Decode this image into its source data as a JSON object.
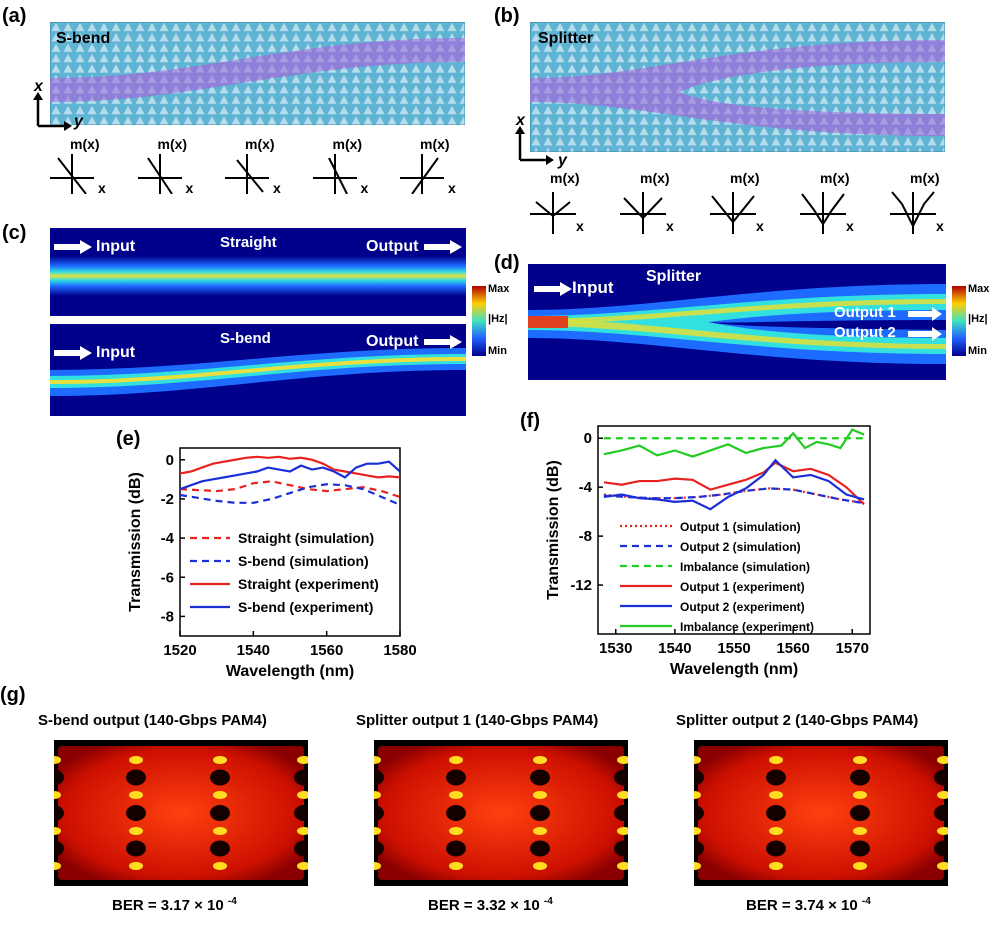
{
  "panels": {
    "a": {
      "label": "(a)",
      "title": "S-bend",
      "axis_x": "x",
      "axis_y": "y",
      "mode_label": "m(x)",
      "mode_axis": "x"
    },
    "b": {
      "label": "(b)",
      "title": "Splitter",
      "axis_x": "x",
      "axis_y": "y",
      "mode_label": "m(x)",
      "mode_axis": "x"
    },
    "c": {
      "label": "(c)",
      "top_title": "Straight",
      "bottom_title": "S-bend",
      "input": "Input",
      "output": "Output",
      "scale_max": "Max",
      "scale_min": "Min",
      "scale_label": "|Hz|"
    },
    "d": {
      "label": "(d)",
      "title": "Splitter",
      "input": "Input",
      "output1": "Output 1",
      "output2": "Output 2",
      "scale_max": "Max",
      "scale_min": "Min",
      "scale_label": "|Hz|"
    },
    "e": {
      "label": "(e)"
    },
    "f": {
      "label": "(f)"
    },
    "g": {
      "label": "(g)"
    }
  },
  "eyes": [
    {
      "title": "S-bend output  (140-Gbps PAM4)",
      "ber": "BER = 3.17 × 10"
    },
    {
      "title": "Splitter output 1 (140-Gbps PAM4)",
      "ber": "BER = 3.32 × 10"
    },
    {
      "title": "Splitter output 2 (140-Gbps PAM4)",
      "ber": "BER = 3.74 × 10"
    }
  ],
  "ber_exponent": "-4",
  "colors": {
    "lattice": "#5fb4d4",
    "waveguide": "#8e7fd8",
    "red": "#e8231f",
    "blue": "#1a2fd6",
    "green": "#22cc22",
    "field_bg": "#00008b"
  },
  "chart_data": [
    {
      "type": "line",
      "xlabel": "Wavelength (nm)",
      "ylabel": "Transmission (dB)",
      "xlim": [
        1520,
        1580
      ],
      "ylim": [
        -9,
        0.6
      ],
      "xticks": [
        1520,
        1540,
        1560,
        1580
      ],
      "yticks": [
        0,
        -2,
        -4,
        -6,
        -8
      ],
      "legend_position": "bottom-left",
      "series": [
        {
          "name": "Straight (simulation)",
          "style": "dashed",
          "color": "#e8231f",
          "x": [
            1520,
            1525,
            1530,
            1535,
            1540,
            1545,
            1550,
            1555,
            1560,
            1565,
            1570,
            1575,
            1580
          ],
          "y": [
            -1.5,
            -1.55,
            -1.6,
            -1.5,
            -1.2,
            -1.1,
            -1.3,
            -1.5,
            -1.6,
            -1.5,
            -1.4,
            -1.6,
            -1.9
          ]
        },
        {
          "name": "S-bend (simulation)",
          "style": "dashed",
          "color": "#1a2fd6",
          "x": [
            1520,
            1525,
            1530,
            1535,
            1540,
            1545,
            1550,
            1555,
            1560,
            1565,
            1570,
            1575,
            1580
          ],
          "y": [
            -1.8,
            -1.95,
            -2.1,
            -2.2,
            -2.2,
            -2.0,
            -1.7,
            -1.4,
            -1.25,
            -1.3,
            -1.5,
            -1.9,
            -2.3
          ]
        },
        {
          "name": "Straight (experiment)",
          "style": "solid",
          "color": "#e8231f",
          "x": [
            1520,
            1523,
            1526,
            1529,
            1532,
            1535,
            1538,
            1541,
            1544,
            1547,
            1550,
            1553,
            1556,
            1559,
            1562,
            1565,
            1568,
            1571,
            1574,
            1577,
            1580
          ],
          "y": [
            -0.7,
            -0.6,
            -0.4,
            -0.2,
            -0.1,
            0.0,
            0.1,
            0.15,
            0.1,
            0.15,
            0.05,
            0.1,
            0.0,
            -0.2,
            -0.5,
            -0.6,
            -0.7,
            -0.8,
            -0.9,
            -0.85,
            -0.9
          ]
        },
        {
          "name": "S-bend (experiment)",
          "style": "solid",
          "color": "#1a2fd6",
          "x": [
            1520,
            1523,
            1526,
            1529,
            1532,
            1535,
            1538,
            1541,
            1544,
            1547,
            1550,
            1553,
            1556,
            1559,
            1562,
            1565,
            1568,
            1571,
            1574,
            1577,
            1580
          ],
          "y": [
            -1.5,
            -1.3,
            -1.1,
            -1.0,
            -0.9,
            -0.8,
            -0.7,
            -0.6,
            -0.4,
            -0.5,
            -0.6,
            -0.3,
            -0.5,
            -0.4,
            -0.6,
            -0.9,
            -0.4,
            -0.2,
            -0.2,
            -0.1,
            -0.6
          ]
        }
      ]
    },
    {
      "type": "line",
      "xlabel": "Wavelength (nm)",
      "ylabel": "Transmission (dB)",
      "xlim": [
        1527,
        1573
      ],
      "ylim": [
        -16,
        1
      ],
      "xticks": [
        1530,
        1540,
        1550,
        1560,
        1570
      ],
      "yticks": [
        0,
        -4,
        -8,
        -12
      ],
      "legend_position": "bottom-right",
      "series": [
        {
          "name": "Output 1 (simulation)",
          "style": "dotted",
          "color": "#e8231f",
          "x": [
            1528,
            1532,
            1536,
            1540,
            1544,
            1548,
            1552,
            1556,
            1560,
            1564,
            1568,
            1572
          ],
          "y": [
            -4.6,
            -4.8,
            -4.9,
            -4.9,
            -4.8,
            -4.6,
            -4.3,
            -4.1,
            -4.2,
            -4.6,
            -5.0,
            -5.3
          ]
        },
        {
          "name": "Output 2 (simulation)",
          "style": "dashed",
          "color": "#1a2fd6",
          "x": [
            1528,
            1532,
            1536,
            1540,
            1544,
            1548,
            1552,
            1556,
            1560,
            1564,
            1568,
            1572
          ],
          "y": [
            -4.7,
            -4.8,
            -4.9,
            -4.9,
            -4.8,
            -4.6,
            -4.3,
            -4.1,
            -4.2,
            -4.6,
            -5.0,
            -5.3
          ]
        },
        {
          "name": "Imbalance (simulation)",
          "style": "dashed",
          "color": "#22cc22",
          "x": [
            1528,
            1572
          ],
          "y": [
            0,
            0
          ]
        },
        {
          "name": "Output 1 (experiment)",
          "style": "solid",
          "color": "#e8231f",
          "x": [
            1528,
            1531,
            1534,
            1537,
            1540,
            1543,
            1546,
            1549,
            1552,
            1555,
            1557,
            1560,
            1563,
            1566,
            1569,
            1572
          ],
          "y": [
            -3.6,
            -3.8,
            -3.5,
            -3.5,
            -3.3,
            -3.4,
            -4.2,
            -3.8,
            -3.4,
            -2.8,
            -2.0,
            -2.7,
            -2.5,
            -3.0,
            -4.0,
            -5.4
          ]
        },
        {
          "name": "Output 2 (experiment)",
          "style": "solid",
          "color": "#1a2fd6",
          "x": [
            1528,
            1531,
            1534,
            1537,
            1540,
            1543,
            1546,
            1549,
            1552,
            1555,
            1557,
            1560,
            1563,
            1566,
            1569,
            1572
          ],
          "y": [
            -4.8,
            -4.6,
            -4.9,
            -5.0,
            -5.2,
            -5.1,
            -5.8,
            -4.8,
            -4.1,
            -3.0,
            -1.8,
            -3.2,
            -3.0,
            -3.5,
            -4.6,
            -5.0
          ]
        },
        {
          "name": "Imbalance (experiment)",
          "style": "solid",
          "color": "#22cc22",
          "x": [
            1528,
            1531,
            1534,
            1537,
            1540,
            1543,
            1546,
            1549,
            1552,
            1555,
            1558,
            1560,
            1562,
            1564,
            1566,
            1568,
            1570,
            1572
          ],
          "y": [
            -1.3,
            -1.0,
            -0.6,
            -1.4,
            -1.0,
            -1.5,
            -1.0,
            -0.5,
            -1.2,
            -0.8,
            -0.6,
            0.4,
            -0.8,
            -0.3,
            -0.5,
            -0.8,
            0.7,
            0.3
          ]
        }
      ]
    }
  ]
}
